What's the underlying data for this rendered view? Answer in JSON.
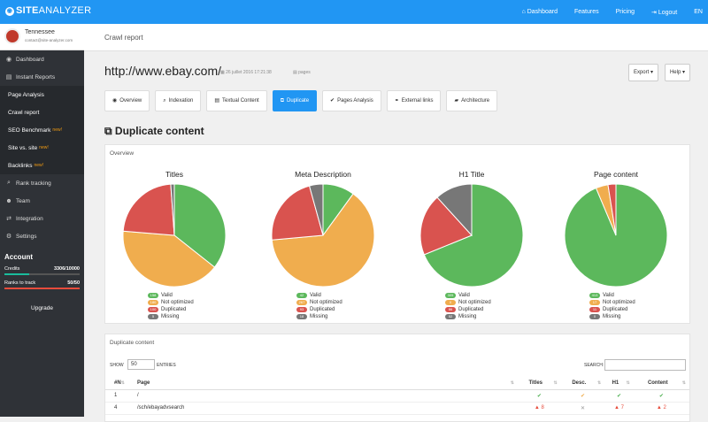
{
  "app": {
    "logo_main": "SITE",
    "logo_lite": "ANALYZER",
    "logo_mark": "◉"
  },
  "topnav": [
    {
      "icon": "⌂",
      "label": "Dashboard"
    },
    {
      "icon": "",
      "label": "Features"
    },
    {
      "icon": "",
      "label": "Pricing"
    },
    {
      "icon": "⇥",
      "label": "Logout"
    },
    {
      "icon": "",
      "label": "EN"
    }
  ],
  "profile": {
    "name": "Tennessee",
    "email": "contact@site-analyzer.com"
  },
  "sidebar": {
    "items": [
      {
        "icon": "◉",
        "label": "Dashboard"
      },
      {
        "icon": "▤",
        "label": "Instant Reports"
      }
    ],
    "sub": [
      {
        "label": "Page Analysis",
        "badge": ""
      },
      {
        "label": "Crawl report",
        "badge": ""
      },
      {
        "label": "SEO Benchmark",
        "badge": "new!"
      },
      {
        "label": "Site vs. site",
        "badge": "new!"
      },
      {
        "label": "Backlinks",
        "badge": "new!"
      }
    ],
    "items2": [
      {
        "icon": "⌕",
        "label": "Rank tracking"
      },
      {
        "icon": "☻",
        "label": "Team"
      },
      {
        "icon": "⇄",
        "label": "Integration"
      },
      {
        "icon": "⚙",
        "label": "Settings"
      }
    ]
  },
  "account": {
    "title": "Account",
    "credits_label": "Credits",
    "credits_value": "3306/10000",
    "credits_fraction": 0.33,
    "ranks_label": "Ranks to track",
    "ranks_value": "50/50",
    "ranks_fraction": 1.0,
    "upgrade": "Upgrade"
  },
  "crumb": "Crawl report",
  "report": {
    "url": "http://www.ebay.com/",
    "date": "26 juillet 2016 17:21:38",
    "pages": "pages",
    "export": "Export ▾",
    "help": "Help ▾"
  },
  "tabs": [
    {
      "icon": "◉",
      "label": "Overview"
    },
    {
      "icon": "⌕",
      "label": "Indexation"
    },
    {
      "icon": "▤",
      "label": "Textual Content"
    },
    {
      "icon": "⧉",
      "label": "Duplicate",
      "active": true
    },
    {
      "icon": "✔",
      "label": "Pages Analysis"
    },
    {
      "icon": "⚭",
      "label": "External links"
    },
    {
      "icon": "▰",
      "label": "Architecture"
    }
  ],
  "section_title": "Duplicate content",
  "overview_label": "Overview",
  "colors": {
    "valid": "#5cb85c",
    "not_optimized": "#f0ad4e",
    "duplicated": "#d9534f",
    "missing": "#777777"
  },
  "legend_labels": [
    "Valid",
    "Not optimized",
    "Duplicated",
    "Missing"
  ],
  "chart_data": [
    {
      "type": "pie",
      "title": "Titles",
      "labels": [
        "Valid",
        "Not optimized",
        "Duplicated",
        "Missing"
      ],
      "values": [
        158,
        180,
        100,
        5
      ]
    },
    {
      "type": "pie",
      "title": "Meta Description",
      "labels": [
        "Valid",
        "Not optimized",
        "Duplicated",
        "Missing"
      ],
      "values": [
        42,
        267,
        93,
        18
      ]
    },
    {
      "type": "pie",
      "title": "H1 Title",
      "labels": [
        "Valid",
        "Not optimized",
        "Duplicated",
        "Missing"
      ],
      "values": [
        305,
        0,
        86,
        52
      ]
    },
    {
      "type": "pie",
      "title": "Page content",
      "labels": [
        "Valid",
        "Not optimized",
        "Duplicated",
        "Missing"
      ],
      "values": [
        413,
        17,
        11,
        0
      ]
    }
  ],
  "dup_table": {
    "title": "Duplicate content",
    "show_label": "SHOW",
    "show_value": "50",
    "entries_label": "ENTRIES",
    "search_label": "SEARCH:",
    "headers": [
      "#N",
      "Page",
      "Titles",
      "Desc.",
      "H1",
      "Content"
    ],
    "rows": [
      {
        "n": "1",
        "page": "/",
        "titles": "✔",
        "desc": "✔",
        "h1": "✔",
        "content": "✔",
        "cls": [
          "ok",
          "warnorange",
          "ok",
          "ok"
        ]
      },
      {
        "n": "4",
        "page": "/sch/ebayadvsearch",
        "titles": "▲ 8",
        "desc": "✕",
        "h1": "▲ 7",
        "content": "▲ 2",
        "cls": [
          "warn",
          "mute",
          "warn",
          "warn"
        ]
      }
    ]
  }
}
